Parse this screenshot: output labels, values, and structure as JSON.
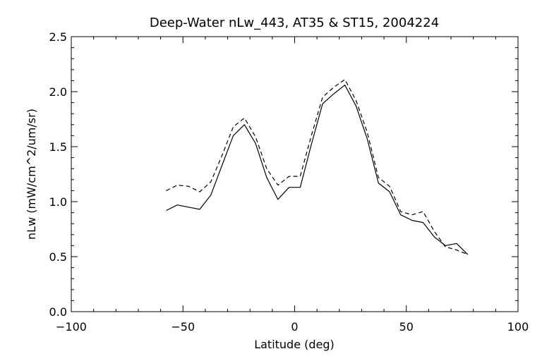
{
  "chart_data": {
    "type": "line",
    "title": "Deep-Water nLw_443, AT35 & ST15, 2004224",
    "xlabel": "Latitude (deg)",
    "ylabel": "nLw (mW/cm^2/um/sr)",
    "xlim": [
      -100,
      100
    ],
    "ylim": [
      0.0,
      2.5
    ],
    "x_ticks": [
      -100,
      -50,
      0,
      50,
      100
    ],
    "y_ticks": [
      0.0,
      0.5,
      1.0,
      1.5,
      2.0,
      2.5
    ],
    "x_tick_labels": [
      "−100",
      "−50",
      "0",
      "50",
      "100"
    ],
    "y_tick_labels": [
      "0.0",
      "0.5",
      "1.0",
      "1.5",
      "2.0",
      "2.5"
    ],
    "grid": false,
    "series": [
      {
        "style": "solid",
        "x": [
          -57.5,
          -52.5,
          -47.5,
          -42.5,
          -37.5,
          -32.5,
          -27.5,
          -22.5,
          -17.5,
          -12.5,
          -7.5,
          -2.5,
          2.5,
          7.5,
          12.5,
          17.5,
          22.5,
          27.5,
          32.5,
          37.5,
          42.5,
          47.5,
          52.5,
          57.5,
          62.5,
          67.5,
          72.5,
          77.5
        ],
        "y": [
          0.92,
          0.97,
          0.95,
          0.93,
          1.06,
          1.33,
          1.6,
          1.7,
          1.53,
          1.22,
          1.02,
          1.13,
          1.13,
          1.52,
          1.89,
          1.98,
          2.06,
          1.87,
          1.57,
          1.17,
          1.09,
          0.88,
          0.83,
          0.81,
          0.68,
          0.6,
          0.62,
          0.52
        ]
      },
      {
        "style": "dashed",
        "x": [
          -57.5,
          -52.5,
          -47.5,
          -42.5,
          -37.5,
          -32.5,
          -27.5,
          -22.5,
          -17.5,
          -12.5,
          -7.5,
          -2.5,
          2.5,
          7.5,
          12.5,
          17.5,
          22.5,
          27.5,
          32.5,
          37.5,
          42.5,
          47.5,
          52.5,
          57.5,
          62.5,
          67.5,
          72.5,
          77.5
        ],
        "y": [
          1.1,
          1.15,
          1.14,
          1.09,
          1.18,
          1.42,
          1.68,
          1.76,
          1.59,
          1.3,
          1.15,
          1.23,
          1.23,
          1.6,
          1.95,
          2.04,
          2.11,
          1.92,
          1.63,
          1.22,
          1.14,
          0.91,
          0.88,
          0.91,
          0.73,
          0.59,
          0.56,
          0.52
        ]
      }
    ]
  }
}
